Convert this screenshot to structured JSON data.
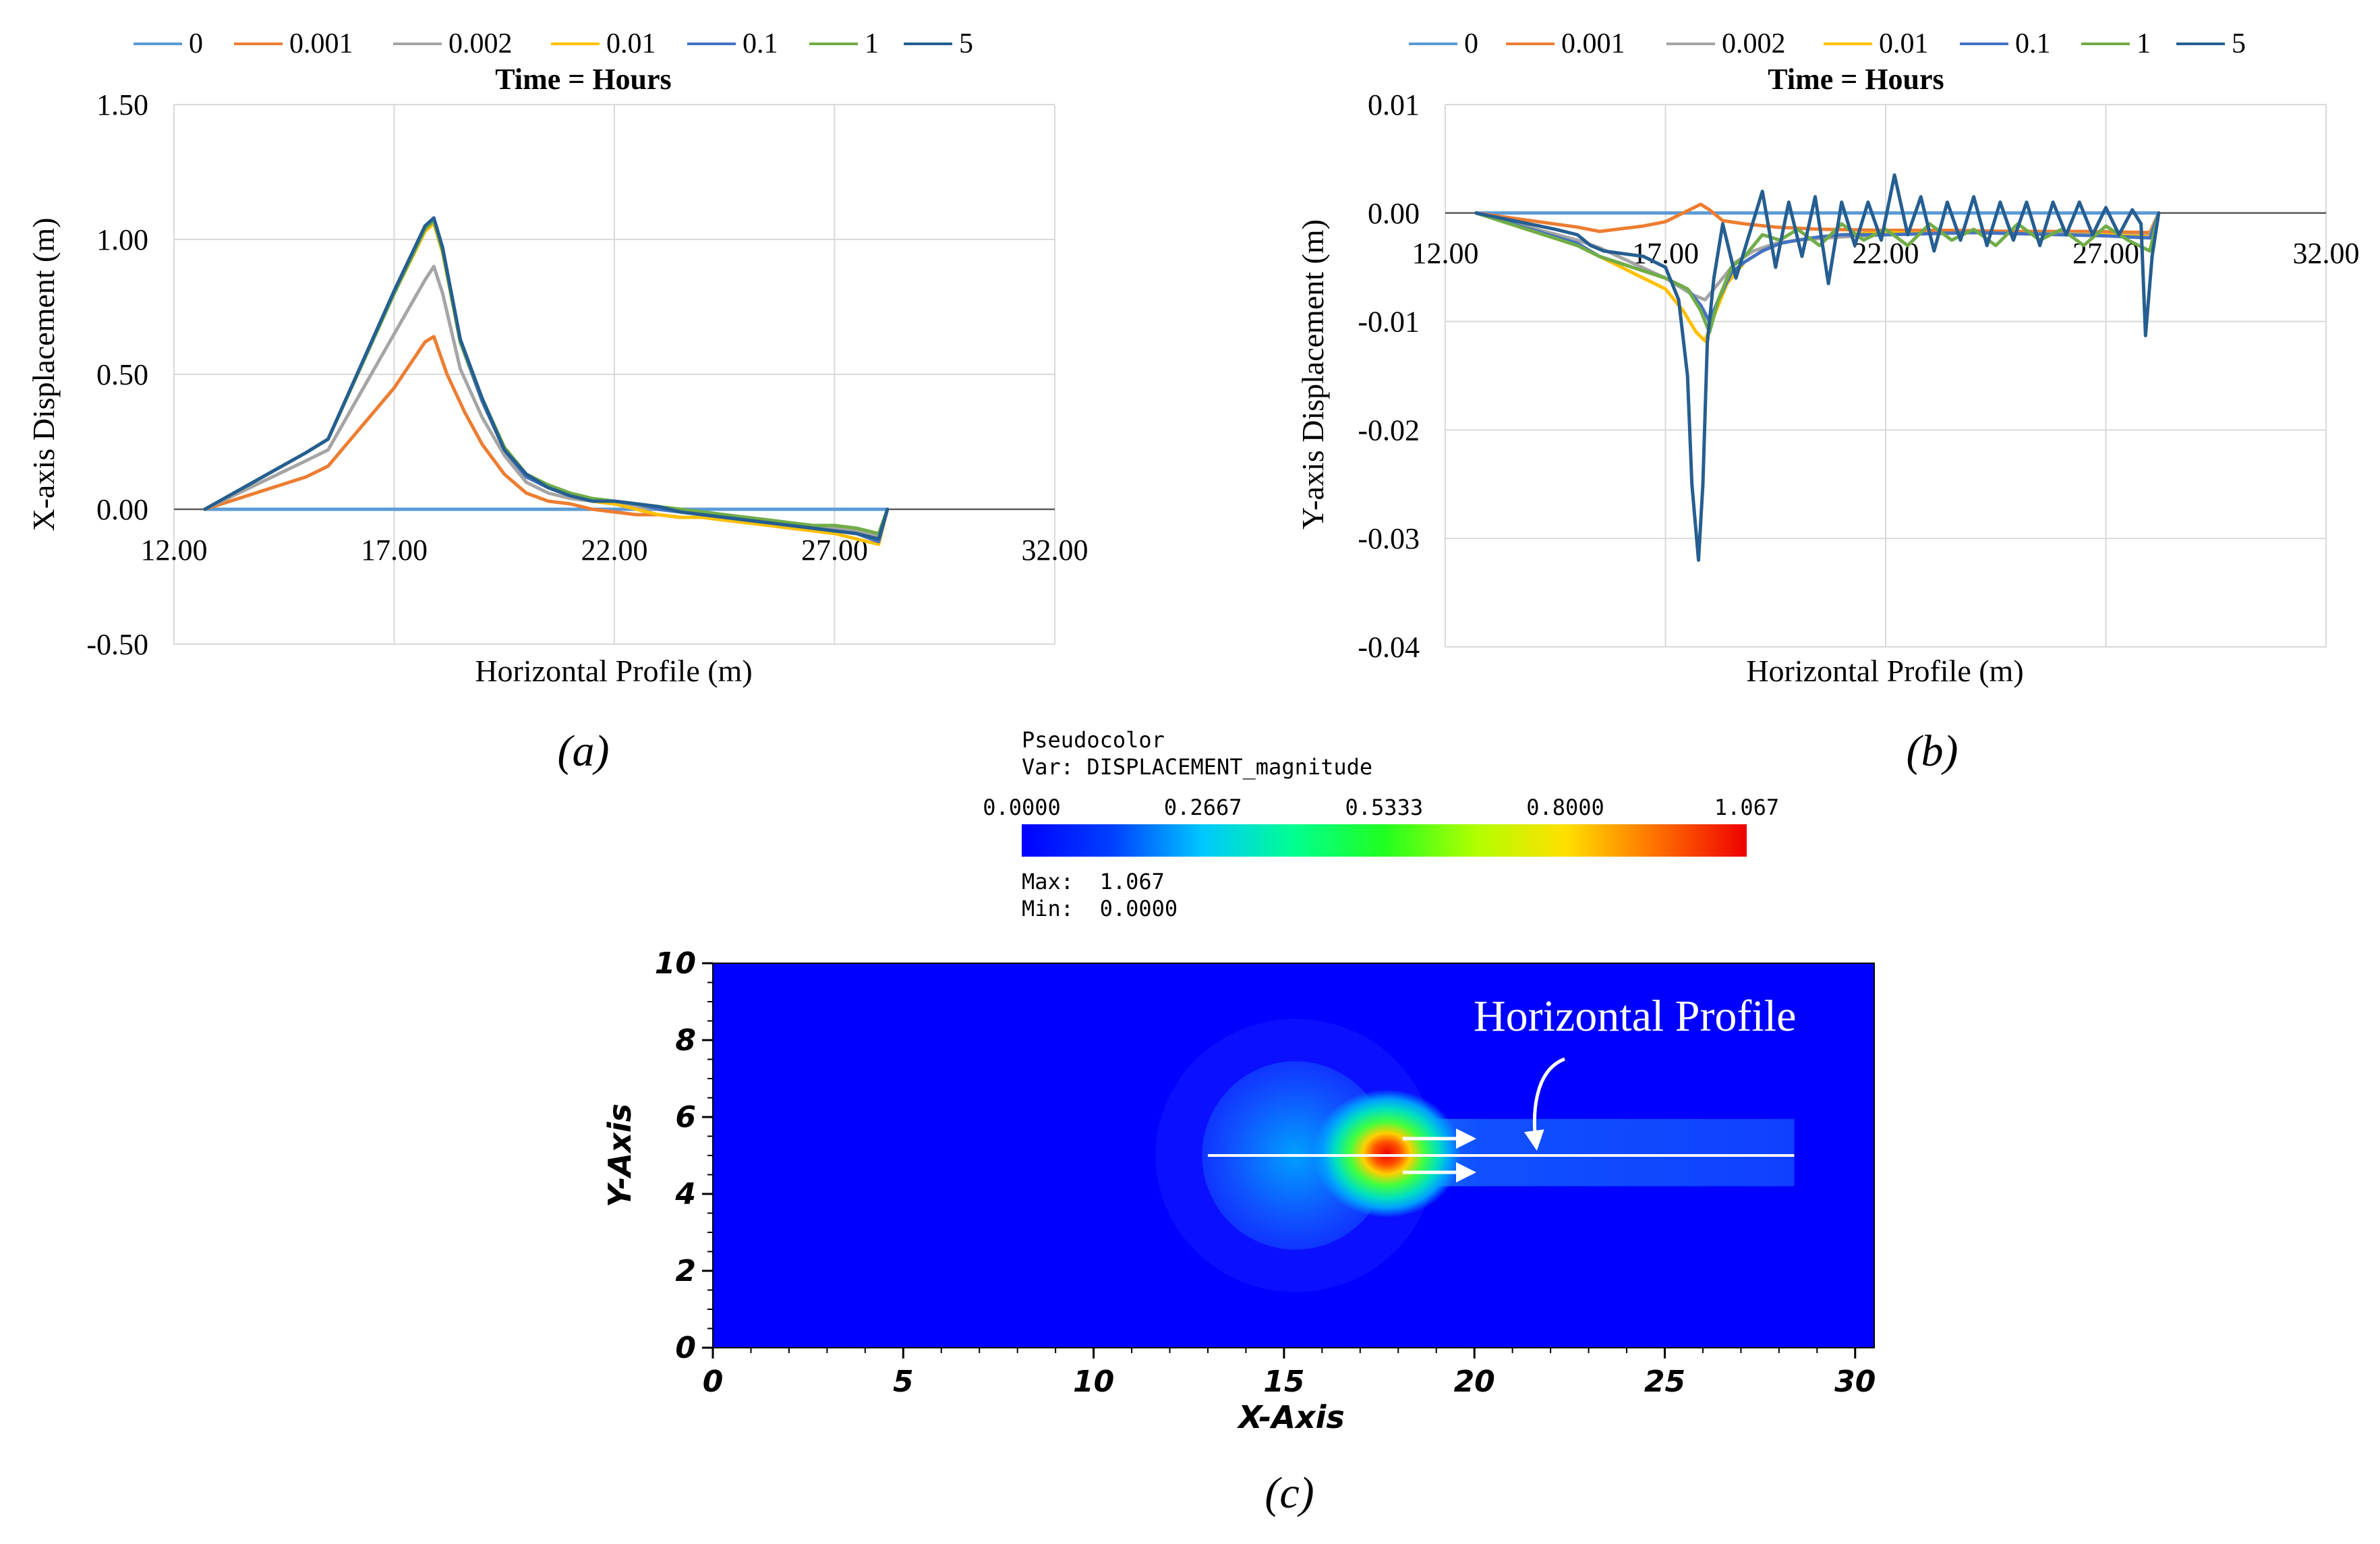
{
  "figure": {
    "caption_a": "(a)",
    "caption_b": "(b)",
    "caption_c": "(c)"
  },
  "legend": {
    "title": "Time = Hours",
    "entries": [
      {
        "label": "0",
        "color": "#5b9bd5"
      },
      {
        "label": "0.001",
        "color": "#ed7d31"
      },
      {
        "label": "0.002",
        "color": "#a5a5a5"
      },
      {
        "label": "0.01",
        "color": "#ffc000"
      },
      {
        "label": "0.1",
        "color": "#4472c4"
      },
      {
        "label": "1",
        "color": "#70ad47"
      },
      {
        "label": "5",
        "color": "#255e91"
      }
    ]
  },
  "chart_data": [
    {
      "id": "a",
      "type": "line",
      "title": "Time = Hours",
      "xlabel": "Horizontal Profile (m)",
      "ylabel": "X-axis Displacement (m)",
      "xlim": [
        12,
        32
      ],
      "ylim": [
        -0.5,
        1.5
      ],
      "x_ticks": [
        "12.00",
        "17.00",
        "22.00",
        "27.00",
        "32.00"
      ],
      "y_ticks": [
        "-0.50",
        "0.00",
        "0.50",
        "1.00",
        "1.50"
      ],
      "grid": true,
      "legend_position": "top",
      "series": [
        {
          "name": "0",
          "color": "#5b9bd5",
          "x": [
            12.7,
            28.2
          ],
          "y": [
            0,
            0
          ]
        },
        {
          "name": "0.001",
          "color": "#ed7d31",
          "x": [
            12.7,
            15.0,
            15.5,
            17.0,
            17.7,
            17.9,
            18.2,
            18.6,
            19.0,
            19.5,
            20.0,
            20.5,
            21.0,
            21.5,
            22.0,
            22.5,
            23.0,
            23.5,
            24.0,
            24.5,
            25.0,
            25.5,
            26.0,
            26.5,
            27.0,
            27.5,
            28.0,
            28.2
          ],
          "y": [
            0,
            0.12,
            0.16,
            0.45,
            0.62,
            0.64,
            0.5,
            0.36,
            0.24,
            0.13,
            0.06,
            0.03,
            0.02,
            0.0,
            -0.01,
            -0.02,
            -0.02,
            -0.03,
            -0.03,
            -0.04,
            -0.05,
            -0.05,
            -0.06,
            -0.07,
            -0.08,
            -0.09,
            -0.11,
            0.0
          ]
        },
        {
          "name": "0.002",
          "color": "#a5a5a5",
          "x": [
            12.7,
            15.0,
            15.5,
            17.0,
            17.7,
            17.9,
            18.1,
            18.5,
            19.0,
            19.5,
            20.0,
            20.5,
            21.0,
            21.5,
            22.0,
            22.5,
            23.0,
            23.5,
            24.0,
            24.5,
            25.0,
            25.5,
            26.0,
            26.5,
            27.0,
            27.5,
            28.0,
            28.2
          ],
          "y": [
            0,
            0.18,
            0.22,
            0.65,
            0.85,
            0.9,
            0.8,
            0.52,
            0.34,
            0.2,
            0.1,
            0.06,
            0.04,
            0.03,
            0.02,
            0.01,
            0.0,
            -0.01,
            -0.02,
            -0.03,
            -0.03,
            -0.04,
            -0.05,
            -0.06,
            -0.07,
            -0.08,
            -0.1,
            0.0
          ]
        },
        {
          "name": "0.01",
          "color": "#ffc000",
          "x": [
            12.7,
            15.0,
            15.5,
            17.0,
            17.7,
            17.9,
            18.1,
            18.5,
            19.0,
            19.5,
            20.0,
            20.5,
            21.0,
            21.5,
            22.0,
            22.5,
            23.0,
            23.5,
            24.0,
            24.5,
            25.0,
            25.5,
            26.0,
            26.5,
            27.0,
            27.5,
            28.0,
            28.2
          ],
          "y": [
            0,
            0.21,
            0.26,
            0.8,
            1.03,
            1.06,
            0.95,
            0.62,
            0.4,
            0.22,
            0.12,
            0.08,
            0.05,
            0.03,
            0.02,
            0.0,
            -0.02,
            -0.03,
            -0.03,
            -0.04,
            -0.05,
            -0.06,
            -0.07,
            -0.08,
            -0.09,
            -0.11,
            -0.13,
            0.0
          ]
        },
        {
          "name": "0.1",
          "color": "#4472c4",
          "x": [
            12.7,
            15.0,
            15.5,
            17.0,
            17.7,
            17.9,
            18.1,
            18.5,
            19.0,
            19.5,
            20.0,
            20.5,
            21.0,
            21.5,
            22.0,
            22.5,
            23.0,
            23.5,
            24.0,
            24.5,
            25.0,
            25.5,
            26.0,
            26.5,
            27.0,
            27.5,
            28.0,
            28.2
          ],
          "y": [
            0,
            0.21,
            0.26,
            0.8,
            1.04,
            1.07,
            0.96,
            0.62,
            0.4,
            0.22,
            0.12,
            0.08,
            0.05,
            0.03,
            0.03,
            0.02,
            0.0,
            -0.01,
            -0.02,
            -0.03,
            -0.04,
            -0.05,
            -0.06,
            -0.07,
            -0.08,
            -0.09,
            -0.12,
            0.0
          ]
        },
        {
          "name": "1",
          "color": "#70ad47",
          "x": [
            12.7,
            15.0,
            15.5,
            17.0,
            17.7,
            17.9,
            18.1,
            18.5,
            19.0,
            19.5,
            20.0,
            20.5,
            21.0,
            21.5,
            22.0,
            22.5,
            23.0,
            23.5,
            24.0,
            24.5,
            25.0,
            25.5,
            26.0,
            26.5,
            27.0,
            27.5,
            28.0,
            28.2
          ],
          "y": [
            0,
            0.21,
            0.26,
            0.8,
            1.04,
            1.07,
            0.96,
            0.62,
            0.41,
            0.23,
            0.13,
            0.09,
            0.06,
            0.04,
            0.03,
            0.02,
            0.01,
            0.0,
            -0.01,
            -0.02,
            -0.03,
            -0.04,
            -0.05,
            -0.06,
            -0.06,
            -0.07,
            -0.09,
            0.0
          ]
        },
        {
          "name": "5",
          "color": "#255e91",
          "x": [
            12.7,
            15.0,
            15.5,
            17.0,
            17.7,
            17.9,
            18.1,
            18.5,
            19.0,
            19.5,
            20.0,
            20.5,
            21.0,
            21.5,
            22.0,
            22.5,
            23.0,
            23.5,
            24.0,
            24.5,
            25.0,
            25.5,
            26.0,
            26.5,
            27.0,
            27.5,
            28.0,
            28.2
          ],
          "y": [
            0,
            0.21,
            0.26,
            0.81,
            1.05,
            1.08,
            0.97,
            0.63,
            0.41,
            0.22,
            0.13,
            0.08,
            0.05,
            0.03,
            0.03,
            0.02,
            0.01,
            -0.01,
            -0.02,
            -0.03,
            -0.04,
            -0.05,
            -0.06,
            -0.07,
            -0.08,
            -0.09,
            -0.11,
            0.0
          ]
        }
      ]
    },
    {
      "id": "b",
      "type": "line",
      "title": "Time = Hours",
      "xlabel": "Horizontal Profile (m)",
      "ylabel": "Y-axis Displacement (m)",
      "xlim": [
        12,
        32
      ],
      "ylim": [
        -0.04,
        0.01
      ],
      "x_ticks": [
        "12.00",
        "17.00",
        "22.00",
        "27.00",
        "32.00"
      ],
      "y_ticks": [
        "-0.04",
        "-0.03",
        "-0.02",
        "-0.01",
        "0.00",
        "0.01"
      ],
      "grid": true,
      "legend_position": "top",
      "series": [
        {
          "name": "0",
          "color": "#5b9bd5",
          "x": [
            12.7,
            28.2
          ],
          "y": [
            0,
            0
          ]
        },
        {
          "name": "0.001",
          "color": "#ed7d31",
          "x": [
            12.7,
            15.0,
            15.5,
            16.5,
            17.0,
            17.4,
            17.8,
            18.0,
            18.3,
            18.8,
            19.5,
            20.5,
            22.0,
            23.5,
            25.0,
            26.5,
            28.0,
            28.2
          ],
          "y": [
            0,
            -0.0013,
            -0.0017,
            -0.0012,
            -0.0008,
            0.0,
            0.0008,
            0.0003,
            -0.0007,
            -0.001,
            -0.0013,
            -0.0015,
            -0.0016,
            -0.0016,
            -0.0017,
            -0.0017,
            -0.0018,
            0.0
          ]
        },
        {
          "name": "0.002",
          "color": "#a5a5a5",
          "x": [
            12.7,
            15.0,
            15.5,
            17.0,
            17.6,
            17.9,
            18.2,
            18.6,
            19.0,
            19.5,
            20.0,
            21.0,
            22.0,
            23.0,
            24.0,
            25.0,
            26.0,
            27.0,
            28.0,
            28.2
          ],
          "y": [
            0,
            -0.0025,
            -0.0032,
            -0.006,
            -0.0075,
            -0.008,
            -0.0065,
            -0.0045,
            -0.0035,
            -0.0028,
            -0.0025,
            -0.0022,
            -0.002,
            -0.0019,
            -0.0018,
            -0.0019,
            -0.0019,
            -0.002,
            -0.0021,
            0.0
          ]
        },
        {
          "name": "0.01",
          "color": "#ffc000",
          "x": [
            12.7,
            15.0,
            15.5,
            17.0,
            17.4,
            17.7,
            17.9,
            18.1,
            18.4,
            18.8,
            19.2,
            19.6,
            20.0,
            20.5,
            21.0,
            22.0,
            23.0,
            24.0,
            25.0,
            26.0,
            27.0,
            28.0,
            28.2
          ],
          "y": [
            0,
            -0.003,
            -0.004,
            -0.007,
            -0.009,
            -0.011,
            -0.0118,
            -0.0095,
            -0.0065,
            -0.0045,
            -0.0035,
            -0.0028,
            -0.0025,
            -0.0022,
            -0.002,
            -0.0018,
            -0.0019,
            -0.0018,
            -0.0019,
            -0.002,
            -0.002,
            -0.0022,
            0.0
          ]
        },
        {
          "name": "0.1",
          "color": "#4472c4",
          "x": [
            12.7,
            15.0,
            15.5,
            17.0,
            17.5,
            17.8,
            18.0,
            18.2,
            18.5,
            18.8,
            19.2,
            19.6,
            20.0,
            20.5,
            21.0,
            22.0,
            23.0,
            24.0,
            25.0,
            26.0,
            27.0,
            28.0,
            28.2
          ],
          "y": [
            0,
            -0.0028,
            -0.004,
            -0.006,
            -0.007,
            -0.0085,
            -0.01,
            -0.008,
            -0.0055,
            -0.0045,
            -0.0035,
            -0.0028,
            -0.0025,
            -0.0022,
            -0.002,
            -0.002,
            -0.0019,
            -0.0018,
            -0.0019,
            -0.002,
            -0.0021,
            -0.0023,
            0.0
          ]
        },
        {
          "name": "1",
          "color": "#70ad47",
          "x": [
            12.7,
            15.0,
            15.5,
            17.0,
            17.5,
            17.8,
            18.0,
            18.2,
            18.5,
            18.8,
            19.2,
            19.6,
            20.0,
            20.5,
            21.0,
            21.5,
            22.0,
            22.5,
            23.0,
            23.5,
            24.0,
            24.5,
            25.0,
            25.5,
            26.0,
            26.5,
            27.0,
            27.5,
            28.0,
            28.2
          ],
          "y": [
            0,
            -0.003,
            -0.004,
            -0.006,
            -0.007,
            -0.009,
            -0.011,
            -0.008,
            -0.005,
            -0.004,
            -0.002,
            -0.0025,
            -0.0015,
            -0.003,
            -0.001,
            -0.0025,
            -0.0015,
            -0.003,
            -0.001,
            -0.0025,
            -0.0015,
            -0.003,
            -0.001,
            -0.0025,
            -0.0015,
            -0.003,
            -0.0012,
            -0.0025,
            -0.0035,
            0.0
          ]
        },
        {
          "name": "5",
          "color": "#255e91",
          "x": [
            12.7,
            14.5,
            15.0,
            15.3,
            15.6,
            16.5,
            17.0,
            17.3,
            17.5,
            17.6,
            17.75,
            17.85,
            17.95,
            18.1,
            18.3,
            18.6,
            18.9,
            19.2,
            19.5,
            19.8,
            20.1,
            20.4,
            20.7,
            21.0,
            21.3,
            21.6,
            21.9,
            22.2,
            22.5,
            22.8,
            23.1,
            23.4,
            23.7,
            24.0,
            24.3,
            24.6,
            24.9,
            25.2,
            25.5,
            25.8,
            26.1,
            26.4,
            26.7,
            27.0,
            27.3,
            27.6,
            27.8,
            27.9,
            28.05,
            28.2
          ],
          "y": [
            0,
            -0.0015,
            -0.002,
            -0.003,
            -0.0035,
            -0.004,
            -0.005,
            -0.008,
            -0.015,
            -0.025,
            -0.032,
            -0.025,
            -0.012,
            -0.006,
            -0.001,
            -0.006,
            -0.002,
            0.002,
            -0.005,
            0.001,
            -0.004,
            0.0015,
            -0.0065,
            0.001,
            -0.003,
            0.001,
            -0.0025,
            0.0035,
            -0.002,
            0.0015,
            -0.0035,
            0.001,
            -0.0025,
            0.0015,
            -0.003,
            0.001,
            -0.0025,
            0.001,
            -0.003,
            0.001,
            -0.002,
            0.001,
            -0.002,
            0.0005,
            -0.002,
            0.0003,
            -0.001,
            -0.0113,
            -0.004,
            0.0
          ]
        }
      ]
    },
    {
      "id": "c",
      "type": "heatmap",
      "title": "Pseudocolor",
      "variable": "Var: DISPLACEMENT_magnitude",
      "xlabel": "X-Axis",
      "ylabel": "Y-Axis",
      "xlim": [
        0,
        30.5
      ],
      "ylim": [
        0,
        10
      ],
      "x_ticks": [
        "0",
        "5",
        "10",
        "15",
        "20",
        "25",
        "30"
      ],
      "y_ticks": [
        "0",
        "2",
        "4",
        "6",
        "8",
        "10"
      ],
      "colorbar_ticks": [
        "0.0000",
        "0.2667",
        "0.5333",
        "0.8000",
        "1.067"
      ],
      "colorbar_range": [
        0.0,
        1.067
      ],
      "max_label": "Max:  1.067",
      "min_label": "Min:  0.0000",
      "annotation": "Horizontal Profile",
      "geometry": {
        "circle_center": [
          15.3,
          5.0
        ],
        "circle_radius": 2.45,
        "channel_x": [
          17.4,
          28.4
        ],
        "channel_y": [
          4.2,
          5.95
        ],
        "profile_line": {
          "x": [
            13.0,
            28.4
          ],
          "y": 5.0
        },
        "hotspot": {
          "x": 17.7,
          "y": 5.05,
          "value": 1.067
        }
      }
    }
  ]
}
